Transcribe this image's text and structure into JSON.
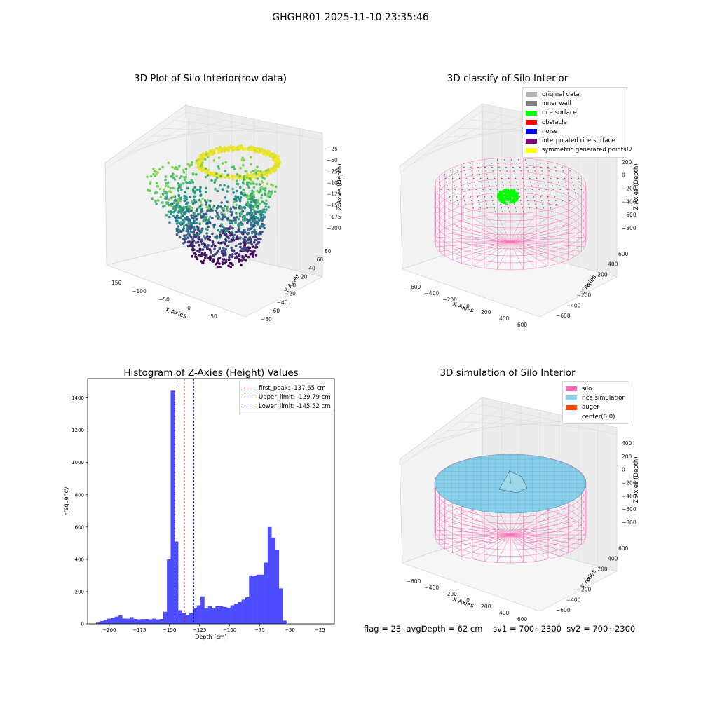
{
  "suptitle": "GHGHR01 2025-11-10 23:35:46",
  "footer": {
    "flag": "flag = 23",
    "avg_depth": "avgDepth = 62 cm",
    "sv1": "sv1 = 700~2300",
    "sv2": "sv2 = 700~2300"
  },
  "colors": {
    "hist_bar": "#4d4dff",
    "first_peak_line": "#cc0000",
    "limit_line": "#0000cc",
    "silo_wire": "#ff69b4",
    "rice_sim": "#87ceeb",
    "auger": "#ff4500",
    "rice_surface": "#00ff00"
  },
  "panels": {
    "raw": {
      "title": "3D Plot of Silo Interior(row data)",
      "xlabel": "X Axies",
      "ylabel": "Y Axies",
      "zlabel": "Z Axies (Depth)",
      "xticks": [
        "−150",
        "−100",
        "−50",
        "0",
        "50"
      ],
      "yticks": [
        "−80",
        "−60",
        "−40",
        "−20",
        "0",
        "20",
        "40",
        "60",
        "80"
      ],
      "zticks": [
        "−25",
        "−50",
        "−75",
        "−100",
        "−125",
        "−150",
        "−175",
        "−200"
      ]
    },
    "classify": {
      "title": "3D classify of Silo Interior",
      "xlabel": "X Axies",
      "ylabel": "Y Axies",
      "zlabel": "Z Axies (Depth)",
      "xticks": [
        "−600",
        "−400",
        "−200",
        "0",
        "200",
        "400",
        "600"
      ],
      "yticks": [
        "−600",
        "−400",
        "−200",
        "0",
        "200",
        "400",
        "600"
      ],
      "zticks": [
        "400",
        "200",
        "0",
        "−200",
        "−400",
        "−600",
        "−800"
      ],
      "legend": [
        {
          "label": "original data",
          "color": "#b3b3b3"
        },
        {
          "label": "inner wall",
          "color": "#808080"
        },
        {
          "label": "rice surface",
          "color": "#00ff00"
        },
        {
          "label": "obstacle",
          "color": "#ff0000"
        },
        {
          "label": "noise",
          "color": "#0000ff"
        },
        {
          "label": "interpolated rice surface",
          "color": "#800080"
        },
        {
          "label": "symmetric generated points",
          "color": "#ffff00"
        }
      ]
    },
    "simulation": {
      "title": "3D simulation of Silo Interior",
      "xlabel": "X Axies",
      "ylabel": "Y Axies",
      "zlabel": "Z Axies (Depth)",
      "xticks": [
        "−600",
        "−400",
        "−200",
        "0",
        "200",
        "400",
        "600"
      ],
      "yticks": [
        "−600",
        "−400",
        "−200",
        "0",
        "200",
        "400",
        "600"
      ],
      "zticks": [
        "400",
        "200",
        "0",
        "−200",
        "−400",
        "−600",
        "−800"
      ],
      "legend": [
        {
          "label": "silo",
          "color": "#ff69b4"
        },
        {
          "label": "rice simulation",
          "color": "#87ceeb"
        },
        {
          "label": "auger",
          "color": "#ff4500"
        },
        {
          "label": "center(0,0)",
          "color": ""
        }
      ]
    }
  },
  "chart_data": [
    {
      "type": "histogram",
      "title": "Histogram of Z-Axies (Height) Values",
      "xlabel": "Depth (cm)",
      "ylabel": "Frequency",
      "xlim": [
        -218,
        -13
      ],
      "ylim": [
        0,
        1520
      ],
      "xticks": [
        -200,
        -175,
        -150,
        -125,
        -100,
        -75,
        -50,
        -25
      ],
      "yticks": [
        0,
        200,
        400,
        600,
        800,
        1000,
        1200,
        1400
      ],
      "bin_width": 3.1,
      "bin_start": -211,
      "counts": [
        8,
        18,
        25,
        32,
        38,
        45,
        52,
        33,
        32,
        42,
        30,
        28,
        30,
        30,
        28,
        32,
        28,
        30,
        75,
        400,
        1445,
        510,
        85,
        70,
        55,
        65,
        100,
        115,
        170,
        100,
        110,
        95,
        110,
        110,
        105,
        100,
        115,
        125,
        135,
        150,
        165,
        300,
        300,
        305,
        305,
        380,
        600,
        535,
        460,
        220,
        20
      ],
      "lines": [
        {
          "name": "first_peak: -137.65 cm",
          "x": -137.65,
          "style": "red-dash"
        },
        {
          "name": "Upper_limit: -129.79 cm",
          "x": -129.79,
          "style": "blue-dash"
        },
        {
          "name": "Lower_limit: -145.52 cm",
          "x": -145.52,
          "style": "blue-dash"
        }
      ],
      "legend_position": "top-right"
    }
  ]
}
